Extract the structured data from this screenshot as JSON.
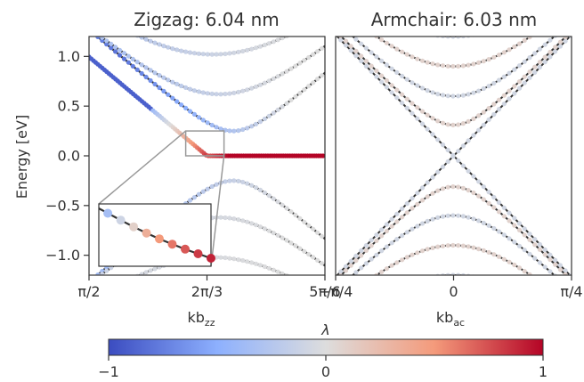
{
  "chart_data": [
    {
      "type": "scatter",
      "title": "Zigzag: 6.04 nm",
      "xlabel": "kb",
      "xlabel_sub": "zz",
      "ylabel": "Energy [eV]",
      "xlim": [
        1.5708,
        2.618
      ],
      "ylim": [
        -1.2,
        1.2
      ],
      "xticks": [
        {
          "value": 1.5708,
          "label": "π/2"
        },
        {
          "value": 2.0944,
          "label": "2π/3"
        },
        {
          "value": 2.618,
          "label": "5π/6"
        }
      ],
      "yticks": [
        {
          "value": 1.0,
          "label": "1.0"
        },
        {
          "value": 0.5,
          "label": "0.5"
        },
        {
          "value": 0.0,
          "label": "0.0"
        },
        {
          "value": -0.5,
          "label": "−0.5"
        },
        {
          "value": -1.0,
          "label": "−1.0"
        }
      ],
      "lines": "tight-binding bands (solid) and continuum model (dotted)",
      "band_edges": [
        0.25,
        0.62,
        1.02,
        -0.25,
        -0.62,
        -1.02
      ],
      "edge_state_energy": 0.0,
      "zoom_box_x": [
        2.0,
        2.17
      ],
      "zoom_box_y": [
        0.0,
        0.25
      ]
    },
    {
      "type": "scatter",
      "title": "Armchair: 6.03 nm",
      "xlabel": "kb",
      "xlabel_sub": "ac",
      "xlim": [
        -0.7854,
        0.7854
      ],
      "ylim": [
        -1.2,
        1.2
      ],
      "xticks": [
        {
          "value": -0.7854,
          "label": "−π/4"
        },
        {
          "value": 0.0,
          "label": "0"
        },
        {
          "value": 0.7854,
          "label": "π/4"
        }
      ],
      "band_edges": [
        0.0,
        0.31,
        0.6,
        0.9,
        -0.31,
        -0.6,
        -0.9
      ]
    }
  ],
  "colorbar": {
    "label": "λ",
    "min": -1,
    "max": 1,
    "ticks": [
      {
        "value": -1,
        "label": "−1"
      },
      {
        "value": 0,
        "label": "0"
      },
      {
        "value": 1,
        "label": "1"
      }
    ],
    "colormap": [
      "#3b4cc0",
      "#8db0fe",
      "#dddddd",
      "#f49a7b",
      "#b40426"
    ]
  }
}
